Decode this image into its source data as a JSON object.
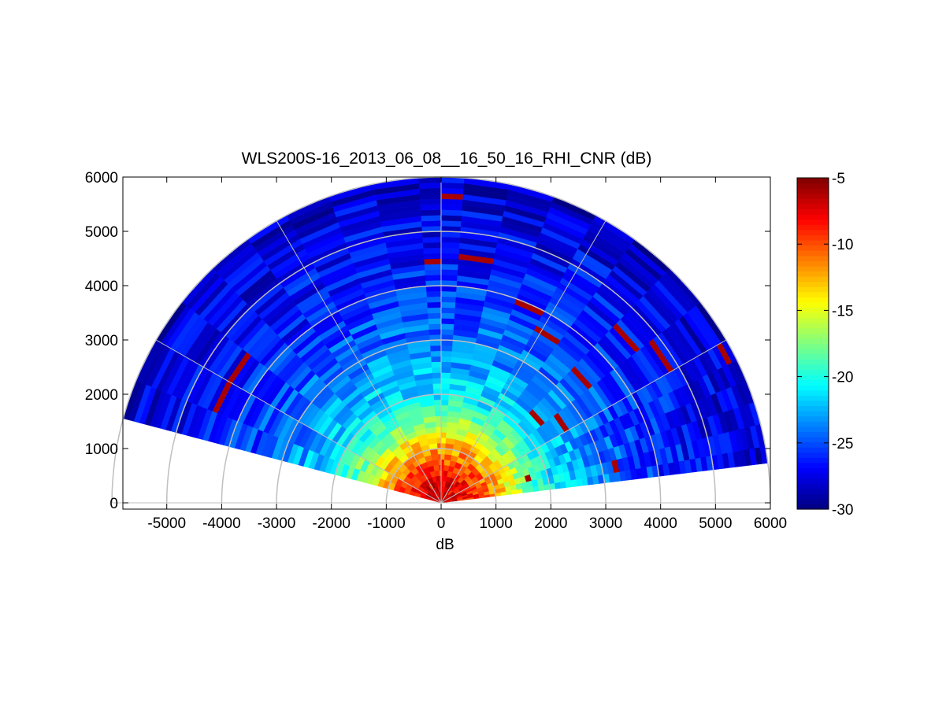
{
  "chart_data": {
    "type": "heatmap",
    "subtype": "polar-rhi-sector",
    "title": "WLS200S-16_2013_06_08__16_50_16_RHI_CNR (dB)",
    "xlabel": "dB",
    "ylabel": "",
    "x_ticks": [
      "-5000",
      "-4000",
      "-3000",
      "-2000",
      "-1000",
      "0",
      "1000",
      "2000",
      "3000",
      "4000",
      "5000",
      "6000"
    ],
    "x_tick_values": [
      -5000,
      -4000,
      -3000,
      -2000,
      -1000,
      0,
      1000,
      2000,
      3000,
      4000,
      5000,
      6000
    ],
    "y_ticks": [
      "0",
      "1000",
      "2000",
      "3000",
      "4000",
      "5000",
      "6000"
    ],
    "y_tick_values": [
      0,
      1000,
      2000,
      3000,
      4000,
      5000,
      6000
    ],
    "xlim": [
      -5800,
      6000
    ],
    "ylim": [
      0,
      6000
    ],
    "colorbar": {
      "ticks": [
        "-5",
        "-10",
        "-15",
        "-20",
        "-25",
        "-30"
      ],
      "tick_values": [
        -5,
        -10,
        -15,
        -20,
        -25,
        -30
      ],
      "range": [
        -30,
        -5
      ],
      "colormap": "jet"
    },
    "range_rings_m": [
      1000,
      2000,
      3000,
      4000,
      5000,
      6000
    ],
    "elevation_range_deg": [
      7,
      165
    ],
    "max_range_m": 6000,
    "beams_elevation_deg": [
      7,
      10,
      14,
      18,
      22,
      26,
      30,
      38,
      46,
      54,
      62,
      70,
      78,
      86,
      90,
      94,
      102,
      110,
      118,
      126,
      134,
      142,
      150,
      158,
      165
    ],
    "cnr_profile_dB": [
      {
        "range_m": 0,
        "value": -7
      },
      {
        "range_m": 500,
        "value": -8
      },
      {
        "range_m": 1000,
        "value": -12
      },
      {
        "range_m": 1500,
        "value": -17
      },
      {
        "range_m": 2000,
        "value": -21
      },
      {
        "range_m": 3000,
        "value": -24
      },
      {
        "range_m": 4000,
        "value": -26
      },
      {
        "range_m": 5000,
        "value": -27
      },
      {
        "range_m": 6000,
        "value": -28
      }
    ],
    "grid": true
  }
}
